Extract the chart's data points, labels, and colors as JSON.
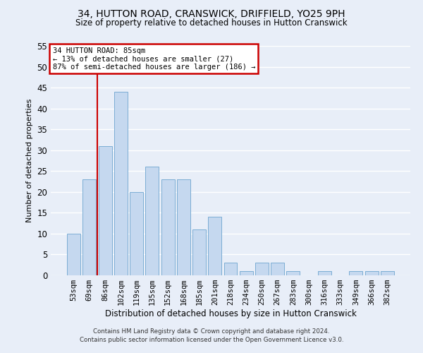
{
  "title": "34, HUTTON ROAD, CRANSWICK, DRIFFIELD, YO25 9PH",
  "subtitle": "Size of property relative to detached houses in Hutton Cranswick",
  "xlabel": "Distribution of detached houses by size in Hutton Cranswick",
  "ylabel": "Number of detached properties",
  "footer_line1": "Contains HM Land Registry data © Crown copyright and database right 2024.",
  "footer_line2": "Contains public sector information licensed under the Open Government Licence v3.0.",
  "categories": [
    "53sqm",
    "69sqm",
    "86sqm",
    "102sqm",
    "119sqm",
    "135sqm",
    "152sqm",
    "168sqm",
    "185sqm",
    "201sqm",
    "218sqm",
    "234sqm",
    "250sqm",
    "267sqm",
    "283sqm",
    "300sqm",
    "316sqm",
    "333sqm",
    "349sqm",
    "366sqm",
    "382sqm"
  ],
  "values": [
    10,
    23,
    31,
    44,
    20,
    26,
    23,
    23,
    11,
    14,
    3,
    1,
    3,
    3,
    1,
    0,
    1,
    0,
    1,
    1,
    1
  ],
  "bar_color": "#c5d8ef",
  "bar_edge_color": "#7badd4",
  "background_color": "#e8eef8",
  "grid_color": "#ffffff",
  "ylim": [
    0,
    55
  ],
  "yticks": [
    0,
    5,
    10,
    15,
    20,
    25,
    30,
    35,
    40,
    45,
    50,
    55
  ],
  "red_line_x": 1.5,
  "annotation_title": "34 HUTTON ROAD: 85sqm",
  "annotation_line2": "← 13% of detached houses are smaller (27)",
  "annotation_line3": "87% of semi-detached houses are larger (186) →",
  "annotation_box_facecolor": "#ffffff",
  "annotation_border_color": "#cc0000",
  "red_line_color": "#cc0000",
  "title_fontsize": 10,
  "subtitle_fontsize": 8.5,
  "ylabel_fontsize": 8,
  "xlabel_fontsize": 8.5,
  "tick_fontsize": 7.5,
  "annotation_fontsize": 7.5,
  "footer_fontsize": 6.2
}
